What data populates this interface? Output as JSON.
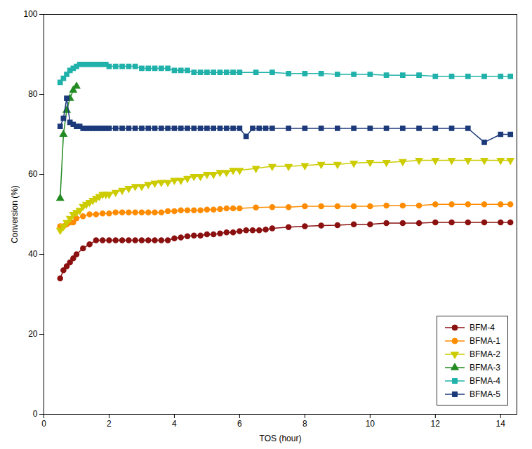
{
  "chart_data": {
    "type": "line",
    "xlabel": "TOS (hour)",
    "ylabel": "Conversion (%)",
    "xlim": [
      0,
      14.5
    ],
    "ylim": [
      0,
      100
    ],
    "xticks": [
      0,
      2,
      4,
      6,
      8,
      10,
      12,
      14
    ],
    "yticks": [
      0,
      20,
      40,
      60,
      80,
      100
    ],
    "legend": "lower right",
    "series": [
      {
        "name": "BFM-4",
        "color": "#8B1010",
        "marker": "circle",
        "x": [
          0.5,
          0.6,
          0.7,
          0.8,
          0.9,
          1.0,
          1.2,
          1.4,
          1.6,
          1.8,
          2.0,
          2.2,
          2.4,
          2.6,
          2.8,
          3.0,
          3.2,
          3.4,
          3.6,
          3.8,
          4.0,
          4.2,
          4.4,
          4.6,
          4.8,
          5.0,
          5.2,
          5.4,
          5.6,
          5.8,
          6.0,
          6.2,
          6.4,
          6.6,
          6.8,
          7.0,
          7.5,
          8.0,
          8.5,
          9.0,
          9.5,
          10.0,
          10.5,
          11.0,
          11.5,
          12.0,
          12.5,
          13.0,
          13.5,
          14.0,
          14.3
        ],
        "values": [
          34,
          36,
          37,
          38,
          39,
          40,
          41.5,
          42.5,
          43.5,
          43.5,
          43.5,
          43.5,
          43.5,
          43.5,
          43.5,
          43.5,
          43.5,
          43.5,
          43.5,
          43.5,
          44.0,
          44.2,
          44.5,
          44.7,
          44.7,
          45.0,
          45.0,
          45.2,
          45.5,
          45.5,
          45.8,
          46.0,
          46.0,
          46.0,
          46.2,
          46.5,
          46.8,
          47.0,
          47.2,
          47.3,
          47.5,
          47.5,
          47.8,
          47.8,
          47.8,
          48.0,
          48.0,
          48.0,
          48.0,
          48.0,
          48.0
        ]
      },
      {
        "name": "BFMA-1",
        "color": "#FF8C00",
        "marker": "circle",
        "x": [
          0.5,
          0.6,
          0.7,
          0.8,
          0.9,
          1.0,
          1.2,
          1.4,
          1.6,
          1.8,
          2.0,
          2.2,
          2.4,
          2.6,
          2.8,
          3.0,
          3.2,
          3.4,
          3.6,
          3.8,
          4.0,
          4.2,
          4.4,
          4.6,
          4.8,
          5.0,
          5.2,
          5.4,
          5.6,
          5.8,
          6.0,
          6.5,
          7.0,
          7.5,
          8.0,
          8.5,
          9.0,
          9.5,
          10.0,
          10.5,
          11.0,
          11.5,
          12.0,
          12.5,
          13.0,
          13.5,
          14.0,
          14.3
        ],
        "values": [
          47.0,
          47.0,
          47.5,
          48.0,
          48.0,
          49.0,
          49.5,
          50.0,
          50.0,
          50.2,
          50.2,
          50.5,
          50.5,
          50.5,
          50.5,
          50.5,
          50.5,
          50.5,
          50.5,
          50.8,
          50.8,
          51.0,
          51.0,
          51.0,
          51.0,
          51.2,
          51.2,
          51.3,
          51.5,
          51.5,
          51.5,
          51.7,
          51.8,
          51.8,
          52.0,
          52.0,
          52.0,
          52.0,
          52.0,
          52.2,
          52.2,
          52.2,
          52.5,
          52.5,
          52.5,
          52.5,
          52.5,
          52.5
        ]
      },
      {
        "name": "BFMA-2",
        "color": "#CCCC00",
        "marker": "triangle-down",
        "x": [
          0.5,
          0.6,
          0.7,
          0.8,
          0.9,
          1.0,
          1.1,
          1.2,
          1.3,
          1.4,
          1.5,
          1.6,
          1.7,
          1.8,
          1.9,
          2.0,
          2.2,
          2.4,
          2.6,
          2.8,
          3.0,
          3.2,
          3.4,
          3.6,
          3.8,
          4.0,
          4.2,
          4.4,
          4.6,
          4.8,
          5.0,
          5.2,
          5.4,
          5.6,
          5.8,
          6.0,
          6.5,
          7.0,
          7.5,
          8.0,
          8.5,
          9.0,
          9.5,
          10.0,
          10.5,
          11.0,
          11.5,
          12.0,
          12.5,
          13.0,
          13.5,
          14.0,
          14.3
        ],
        "values": [
          46.0,
          47.0,
          48.0,
          49.0,
          50.0,
          50.5,
          51.0,
          52.0,
          52.5,
          53.0,
          53.5,
          54.0,
          54.5,
          55.0,
          55.0,
          55.0,
          55.5,
          56.0,
          56.5,
          57.0,
          57.0,
          57.5,
          57.8,
          58.0,
          58.0,
          58.5,
          58.5,
          59.0,
          59.5,
          59.5,
          60.0,
          60.0,
          60.5,
          60.5,
          61.0,
          61.0,
          61.5,
          62.0,
          62.0,
          62.2,
          62.5,
          62.5,
          62.8,
          63.0,
          63.0,
          63.2,
          63.5,
          63.5,
          63.5,
          63.5,
          63.5,
          63.5,
          63.5
        ]
      },
      {
        "name": "BFMA-3",
        "color": "#228B22",
        "marker": "triangle",
        "x": [
          0.5,
          0.6,
          0.7,
          0.8,
          0.9,
          1.0
        ],
        "values": [
          54.0,
          70.0,
          76.0,
          79.0,
          81.0,
          82.0
        ]
      },
      {
        "name": "BFMA-4",
        "color": "#20B2AA",
        "marker": "square",
        "x": [
          0.5,
          0.6,
          0.7,
          0.8,
          0.9,
          1.0,
          1.1,
          1.2,
          1.3,
          1.4,
          1.5,
          1.6,
          1.7,
          1.8,
          1.9,
          2.0,
          2.2,
          2.4,
          2.6,
          2.8,
          3.0,
          3.2,
          3.4,
          3.6,
          3.8,
          4.0,
          4.2,
          4.4,
          4.6,
          4.8,
          5.0,
          5.2,
          5.4,
          5.6,
          5.8,
          6.0,
          6.5,
          7.0,
          7.5,
          8.0,
          8.5,
          9.0,
          9.5,
          10.0,
          10.5,
          11.0,
          11.5,
          12.0,
          12.5,
          13.0,
          13.5,
          14.0,
          14.3
        ],
        "values": [
          83.0,
          84.0,
          85.0,
          86.0,
          86.5,
          87.0,
          87.5,
          87.5,
          87.5,
          87.5,
          87.5,
          87.5,
          87.5,
          87.5,
          87.5,
          87.0,
          87.0,
          87.0,
          87.0,
          87.0,
          86.5,
          86.5,
          86.5,
          86.5,
          86.5,
          86.0,
          86.0,
          86.0,
          85.5,
          85.5,
          85.5,
          85.5,
          85.5,
          85.5,
          85.5,
          85.5,
          85.5,
          85.5,
          85.2,
          85.2,
          85.2,
          85.0,
          85.0,
          85.0,
          84.8,
          84.8,
          84.8,
          84.5,
          84.5,
          84.5,
          84.5,
          84.5,
          84.5
        ]
      },
      {
        "name": "BFMA-5",
        "color": "#1C3A7A",
        "marker": "square",
        "x": [
          0.5,
          0.6,
          0.7,
          0.8,
          0.9,
          1.0,
          1.1,
          1.2,
          1.3,
          1.4,
          1.5,
          1.6,
          1.7,
          1.8,
          1.9,
          2.0,
          2.2,
          2.4,
          2.6,
          2.8,
          3.0,
          3.2,
          3.4,
          3.6,
          3.8,
          4.0,
          4.2,
          4.4,
          4.6,
          4.8,
          5.0,
          5.2,
          5.4,
          5.6,
          5.8,
          6.0,
          6.2,
          6.4,
          6.6,
          6.8,
          7.0,
          7.5,
          8.0,
          8.5,
          9.0,
          9.5,
          10.0,
          10.5,
          11.0,
          11.5,
          12.0,
          12.5,
          13.0,
          13.5,
          14.0,
          14.3
        ],
        "values": [
          72.0,
          74.0,
          79.0,
          73.0,
          72.5,
          72.0,
          72.0,
          71.5,
          71.5,
          71.5,
          71.5,
          71.5,
          71.5,
          71.5,
          71.5,
          71.5,
          71.5,
          71.5,
          71.5,
          71.5,
          71.5,
          71.5,
          71.5,
          71.5,
          71.5,
          71.5,
          71.5,
          71.5,
          71.5,
          71.5,
          71.5,
          71.5,
          71.5,
          71.5,
          71.5,
          71.5,
          69.5,
          71.5,
          71.5,
          71.5,
          71.5,
          71.5,
          71.5,
          71.5,
          71.5,
          71.5,
          71.5,
          71.5,
          71.5,
          71.5,
          71.5,
          71.5,
          71.5,
          68.0,
          70.0,
          70.0
        ]
      }
    ]
  }
}
